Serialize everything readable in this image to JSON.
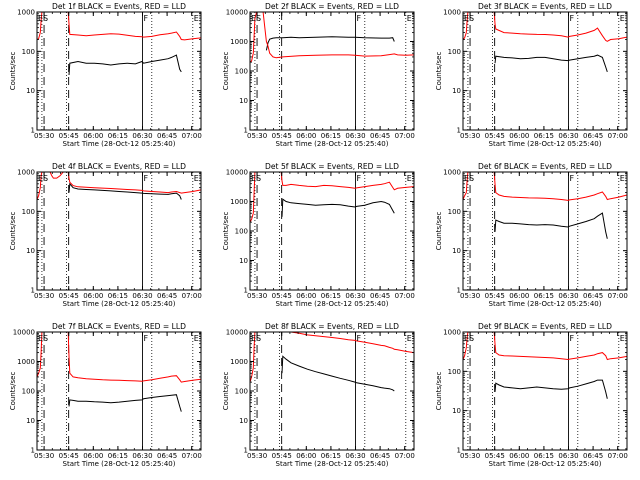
{
  "common": {
    "xlabel": "Start Time (28-Oct-12 05:25:40)",
    "ylabel": "Counts/sec",
    "x_ticks": [
      "05:30",
      "05:45",
      "06:00",
      "06:15",
      "06:30",
      "06:45",
      "07:00"
    ],
    "x_range_minutes": [
      0,
      100
    ],
    "y_scale": "log",
    "colors": {
      "events": "#000000",
      "lld": "#ff0000"
    },
    "markers": {
      "left_dashed_minutes": [
        4.3,
        19.3
      ],
      "dotted_minutes": [
        3,
        18,
        70,
        95
      ],
      "solid_minutes": [
        64.3
      ],
      "letters": [
        "ES",
        "F",
        "E"
      ]
    }
  },
  "chart_data": [
    {
      "type": "line",
      "title": "Det 1f BLACK = Events, RED = LLD",
      "ylim": [
        1,
        1000
      ],
      "y_ticks": [
        "1",
        "10",
        "100",
        "1000"
      ],
      "series": [
        {
          "color": "#000000",
          "x": [
            19.5,
            20,
            25,
            30,
            35,
            40,
            45,
            50,
            55,
            60,
            64,
            65,
            70,
            75,
            80,
            82,
            85,
            87,
            88
          ],
          "y": [
            25,
            50,
            55,
            50,
            50,
            48,
            45,
            48,
            50,
            48,
            55,
            50,
            55,
            60,
            65,
            70,
            80,
            35,
            30
          ]
        },
        {
          "color": "#ff0000",
          "x": [
            0,
            1,
            2,
            2.5,
            3,
            4,
            19,
            19.5,
            20,
            25,
            30,
            35,
            40,
            45,
            50,
            55,
            60,
            64,
            65,
            70,
            75,
            80,
            82,
            85,
            87,
            88,
            90,
            95,
            100
          ],
          "y": [
            200,
            210,
            300,
            600,
            1000,
            1000,
            1000,
            500,
            270,
            260,
            250,
            260,
            270,
            280,
            275,
            255,
            240,
            235,
            230,
            240,
            265,
            280,
            290,
            310,
            240,
            200,
            195,
            210,
            220
          ]
        }
      ]
    },
    {
      "type": "line",
      "title": "Det 2f BLACK = Events, RED = LLD",
      "ylim": [
        1,
        10000
      ],
      "y_ticks": [
        "1",
        "10",
        "100",
        "1000",
        "10000"
      ],
      "series": [
        {
          "color": "#000000",
          "x": [
            10,
            11,
            12,
            14,
            16,
            20,
            25,
            30,
            40,
            50,
            60,
            64,
            70,
            80,
            85,
            87,
            88
          ],
          "y": [
            500,
            900,
            1200,
            1300,
            1350,
            1350,
            1400,
            1350,
            1400,
            1450,
            1400,
            1400,
            1350,
            1300,
            1300,
            1350,
            1000
          ]
        },
        {
          "color": "#ff0000",
          "x": [
            0,
            1,
            2,
            2.5,
            3,
            4,
            6,
            8,
            9,
            10,
            11,
            12,
            14,
            16,
            20,
            30,
            40,
            50,
            60,
            64,
            70,
            80,
            85,
            88,
            90,
            95,
            100
          ],
          "y": [
            200,
            220,
            400,
            1500,
            6000,
            10000,
            10000,
            10000,
            3000,
            1000,
            700,
            400,
            300,
            280,
            300,
            330,
            340,
            350,
            350,
            340,
            320,
            330,
            360,
            380,
            350,
            340,
            350
          ]
        }
      ]
    },
    {
      "type": "line",
      "title": "Det 3f BLACK = Events, RED = LLD",
      "ylim": [
        1,
        1000
      ],
      "y_ticks": [
        "1",
        "10",
        "100",
        "1000"
      ],
      "series": [
        {
          "color": "#000000",
          "x": [
            19.5,
            20,
            25,
            30,
            35,
            40,
            45,
            50,
            55,
            60,
            64,
            65,
            70,
            75,
            80,
            82,
            85,
            87,
            88
          ],
          "y": [
            50,
            75,
            70,
            68,
            65,
            66,
            70,
            70,
            65,
            60,
            58,
            60,
            65,
            70,
            75,
            80,
            70,
            40,
            30
          ]
        },
        {
          "color": "#ff0000",
          "x": [
            0,
            1,
            2,
            2.5,
            3,
            4,
            19,
            19.5,
            20,
            25,
            30,
            35,
            40,
            45,
            50,
            55,
            60,
            64,
            65,
            70,
            75,
            80,
            82,
            85,
            87,
            88,
            90,
            95,
            100
          ],
          "y": [
            200,
            220,
            300,
            600,
            1000,
            1000,
            1000,
            500,
            370,
            300,
            290,
            280,
            275,
            270,
            268,
            260,
            250,
            230,
            240,
            260,
            290,
            340,
            390,
            250,
            190,
            180,
            200,
            210,
            230
          ]
        }
      ]
    },
    {
      "type": "line",
      "title": "Det 4f BLACK = Events, RED = LLD",
      "ylim": [
        1,
        1000
      ],
      "y_ticks": [
        "1",
        "10",
        "100",
        "1000"
      ],
      "series": [
        {
          "color": "#000000",
          "x": [
            19.5,
            20,
            22,
            25,
            30,
            35,
            40,
            45,
            50,
            55,
            60,
            64,
            65,
            70,
            75,
            80,
            82,
            85,
            87,
            88
          ],
          "y": [
            300,
            500,
            400,
            370,
            360,
            350,
            340,
            330,
            320,
            310,
            300,
            290,
            285,
            280,
            275,
            270,
            280,
            290,
            250,
            200
          ]
        },
        {
          "color": "#ff0000",
          "x": [
            0,
            1,
            2,
            2.5,
            3,
            4,
            6,
            8,
            9,
            10,
            12,
            14,
            16,
            18,
            19,
            19.5,
            20,
            22,
            25,
            30,
            35,
            40,
            45,
            50,
            55,
            60,
            64,
            65,
            70,
            75,
            80,
            82,
            85,
            88,
            90,
            95,
            100
          ],
          "y": [
            200,
            250,
            400,
            800,
            1000,
            1000,
            1000,
            1000,
            800,
            700,
            700,
            800,
            1000,
            1000,
            1000,
            700,
            550,
            450,
            420,
            410,
            400,
            390,
            380,
            370,
            360,
            350,
            340,
            330,
            320,
            310,
            300,
            310,
            320,
            290,
            300,
            320,
            350
          ]
        }
      ]
    },
    {
      "type": "line",
      "title": "Det 5f BLACK = Events, RED = LLD",
      "ylim": [
        1,
        10000
      ],
      "y_ticks": [
        "1",
        "10",
        "100",
        "1000",
        "10000"
      ],
      "series": [
        {
          "color": "#000000",
          "x": [
            19.5,
            20,
            22,
            25,
            30,
            35,
            40,
            45,
            50,
            55,
            60,
            64,
            65,
            70,
            75,
            80,
            82,
            85,
            87,
            88
          ],
          "y": [
            300,
            1200,
            1000,
            900,
            850,
            800,
            750,
            780,
            800,
            780,
            700,
            650,
            680,
            750,
            900,
            1000,
            950,
            800,
            500,
            400
          ]
        },
        {
          "color": "#ff0000",
          "x": [
            0,
            1,
            2,
            2.5,
            3,
            4,
            19,
            19.5,
            20,
            22,
            25,
            30,
            35,
            40,
            45,
            50,
            55,
            60,
            64,
            65,
            70,
            75,
            80,
            82,
            85,
            87,
            88,
            90,
            95,
            100
          ],
          "y": [
            200,
            250,
            400,
            2000,
            10000,
            10000,
            10000,
            5000,
            3500,
            3500,
            3800,
            3500,
            3300,
            3200,
            3500,
            3400,
            3200,
            3000,
            2800,
            2900,
            3200,
            3500,
            3800,
            4000,
            4500,
            3000,
            2500,
            2800,
            3000,
            3200
          ]
        }
      ]
    },
    {
      "type": "line",
      "title": "Det 6f BLACK = Events, RED = LLD",
      "ylim": [
        1,
        1000
      ],
      "y_ticks": [
        "1",
        "10",
        "100",
        "1000"
      ],
      "series": [
        {
          "color": "#000000",
          "x": [
            19.5,
            20,
            22,
            25,
            30,
            35,
            40,
            45,
            50,
            55,
            60,
            64,
            65,
            70,
            75,
            80,
            82,
            85,
            87,
            88
          ],
          "y": [
            30,
            60,
            55,
            50,
            50,
            48,
            46,
            45,
            46,
            45,
            42,
            40,
            42,
            48,
            55,
            65,
            75,
            90,
            30,
            20
          ]
        },
        {
          "color": "#ff0000",
          "x": [
            0,
            1,
            2,
            2.5,
            3,
            4,
            19,
            19.5,
            20,
            22,
            25,
            30,
            35,
            40,
            45,
            50,
            55,
            60,
            64,
            65,
            70,
            75,
            80,
            82,
            85,
            87,
            88,
            90,
            95,
            100
          ],
          "y": [
            200,
            250,
            300,
            600,
            1000,
            1000,
            1000,
            500,
            300,
            260,
            240,
            230,
            225,
            220,
            218,
            215,
            210,
            200,
            190,
            195,
            210,
            230,
            260,
            280,
            310,
            240,
            200,
            210,
            230,
            260
          ]
        }
      ]
    },
    {
      "type": "line",
      "title": "Det 7f BLACK = Events, RED = LLD",
      "ylim": [
        1,
        10000
      ],
      "y_ticks": [
        "1",
        "10",
        "100",
        "1000",
        "10000"
      ],
      "series": [
        {
          "color": "#000000",
          "x": [
            19.5,
            20,
            22,
            25,
            30,
            35,
            40,
            45,
            50,
            55,
            60,
            64,
            65,
            70,
            75,
            80,
            82,
            85,
            87,
            88
          ],
          "y": [
            30,
            50,
            48,
            45,
            45,
            43,
            42,
            40,
            42,
            45,
            48,
            50,
            55,
            60,
            65,
            70,
            72,
            75,
            30,
            20
          ]
        },
        {
          "color": "#ff0000",
          "x": [
            0,
            1,
            2,
            2.5,
            3,
            4,
            19,
            19.5,
            20,
            22,
            25,
            30,
            35,
            40,
            45,
            50,
            55,
            60,
            64,
            65,
            70,
            75,
            80,
            82,
            85,
            87,
            88,
            90,
            95,
            100
          ],
          "y": [
            300,
            400,
            600,
            2000,
            10000,
            10000,
            10000,
            1500,
            400,
            300,
            280,
            260,
            250,
            240,
            235,
            230,
            225,
            220,
            215,
            220,
            240,
            270,
            300,
            320,
            330,
            240,
            200,
            210,
            230,
            250
          ]
        }
      ]
    },
    {
      "type": "line",
      "title": "Det 8f BLACK = Events, RED = LLD",
      "ylim": [
        1,
        10000
      ],
      "y_ticks": [
        "1",
        "10",
        "100",
        "1000",
        "10000"
      ],
      "series": [
        {
          "color": "#000000",
          "x": [
            19.5,
            20,
            22,
            25,
            30,
            35,
            40,
            45,
            50,
            55,
            60,
            64,
            65,
            70,
            75,
            80,
            82,
            85,
            87,
            88
          ],
          "y": [
            400,
            1500,
            1200,
            900,
            700,
            550,
            450,
            380,
            320,
            270,
            230,
            200,
            190,
            170,
            150,
            130,
            125,
            120,
            110,
            100
          ]
        },
        {
          "color": "#ff0000",
          "x": [
            0,
            1,
            2,
            2.5,
            3,
            4,
            19,
            19.5,
            20,
            22,
            25,
            30,
            35,
            40,
            45,
            50,
            55,
            60,
            64,
            65,
            70,
            75,
            80,
            82,
            85,
            87,
            88,
            90,
            95,
            100
          ],
          "y": [
            200,
            300,
            600,
            3000,
            10000,
            10000,
            10000,
            10000,
            10000,
            10000,
            10000,
            9000,
            8000,
            7500,
            7000,
            6500,
            6000,
            5500,
            5200,
            5000,
            4500,
            4000,
            3500,
            3400,
            3000,
            2800,
            2600,
            2500,
            2200,
            2000
          ]
        }
      ]
    },
    {
      "type": "line",
      "title": "Det 9f BLACK = Events, RED = LLD",
      "ylim": [
        1,
        1000
      ],
      "y_ticks": [
        "1",
        "10",
        "100",
        "1000"
      ],
      "series": [
        {
          "color": "#000000",
          "x": [
            19.5,
            20,
            22,
            25,
            30,
            35,
            40,
            45,
            50,
            55,
            60,
            64,
            65,
            70,
            75,
            80,
            82,
            85,
            87,
            88
          ],
          "y": [
            30,
            50,
            45,
            40,
            38,
            36,
            38,
            40,
            38,
            36,
            35,
            36,
            38,
            42,
            48,
            55,
            60,
            60,
            30,
            20
          ]
        },
        {
          "color": "#ff0000",
          "x": [
            0,
            1,
            2,
            2.5,
            3,
            4,
            19,
            19.5,
            20,
            22,
            25,
            30,
            35,
            40,
            45,
            50,
            55,
            60,
            64,
            65,
            70,
            75,
            80,
            82,
            85,
            87,
            88,
            90,
            95,
            100
          ],
          "y": [
            200,
            250,
            400,
            700,
            1000,
            1000,
            1000,
            500,
            300,
            260,
            250,
            245,
            240,
            235,
            230,
            225,
            220,
            210,
            200,
            205,
            220,
            240,
            260,
            280,
            300,
            250,
            200,
            210,
            220,
            240
          ]
        }
      ]
    }
  ]
}
